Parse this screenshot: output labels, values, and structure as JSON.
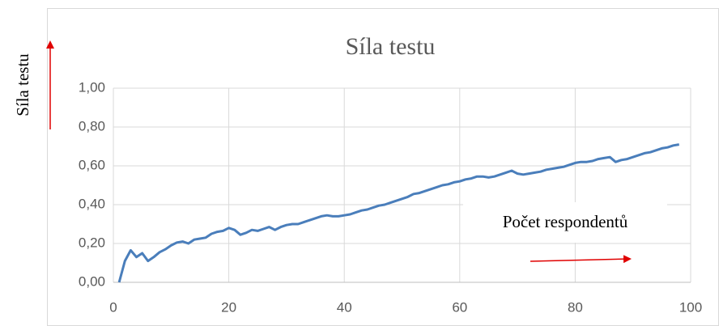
{
  "chart_data": {
    "type": "line",
    "title": "Síla testu",
    "ylabel": "Síla testu",
    "annotation": "Počet respondentů",
    "x": [
      1,
      2,
      3,
      4,
      5,
      6,
      7,
      8,
      9,
      10,
      11,
      12,
      13,
      14,
      15,
      16,
      17,
      18,
      19,
      20,
      21,
      22,
      23,
      24,
      25,
      26,
      27,
      28,
      29,
      30,
      31,
      32,
      33,
      34,
      35,
      36,
      37,
      38,
      39,
      40,
      41,
      42,
      43,
      44,
      45,
      46,
      47,
      48,
      49,
      50,
      51,
      52,
      53,
      54,
      55,
      56,
      57,
      58,
      59,
      60,
      61,
      62,
      63,
      64,
      65,
      66,
      67,
      68,
      69,
      70,
      71,
      72,
      73,
      74,
      75,
      76,
      77,
      78,
      79,
      80,
      81,
      82,
      83,
      84,
      85,
      86,
      87,
      88,
      89,
      90,
      91,
      92,
      93,
      94,
      95,
      96,
      97,
      98
    ],
    "series": [
      {
        "name": "Síla testu",
        "color": "#4a7ebb",
        "values": [
          0,
          0.11,
          0.165,
          0.13,
          0.15,
          0.11,
          0.13,
          0.155,
          0.17,
          0.19,
          0.205,
          0.21,
          0.2,
          0.22,
          0.225,
          0.23,
          0.25,
          0.26,
          0.265,
          0.28,
          0.27,
          0.245,
          0.255,
          0.27,
          0.265,
          0.275,
          0.285,
          0.27,
          0.285,
          0.295,
          0.3,
          0.3,
          0.31,
          0.32,
          0.33,
          0.34,
          0.345,
          0.34,
          0.34,
          0.345,
          0.35,
          0.36,
          0.37,
          0.375,
          0.385,
          0.395,
          0.4,
          0.41,
          0.42,
          0.43,
          0.44,
          0.455,
          0.46,
          0.47,
          0.48,
          0.49,
          0.5,
          0.505,
          0.515,
          0.52,
          0.53,
          0.535,
          0.545,
          0.545,
          0.54,
          0.545,
          0.555,
          0.565,
          0.575,
          0.56,
          0.555,
          0.56,
          0.565,
          0.57,
          0.58,
          0.585,
          0.59,
          0.595,
          0.605,
          0.615,
          0.62,
          0.62,
          0.625,
          0.635,
          0.64,
          0.645,
          0.62,
          0.63,
          0.635,
          0.645,
          0.655,
          0.665,
          0.67,
          0.68,
          0.69,
          0.695,
          0.705,
          0.71
        ]
      }
    ],
    "xlim": [
      0,
      100
    ],
    "xticks": [
      0,
      20,
      40,
      60,
      80,
      100
    ],
    "ylim": [
      0,
      1
    ],
    "yticks": [
      {
        "value": 0,
        "label": "0,00"
      },
      {
        "value": 0.2,
        "label": "0,20"
      },
      {
        "value": 0.4,
        "label": "0,40"
      },
      {
        "value": 0.6,
        "label": "0,60"
      },
      {
        "value": 0.8,
        "label": "0,80"
      },
      {
        "value": 1,
        "label": "1,00"
      }
    ],
    "grid": true
  }
}
